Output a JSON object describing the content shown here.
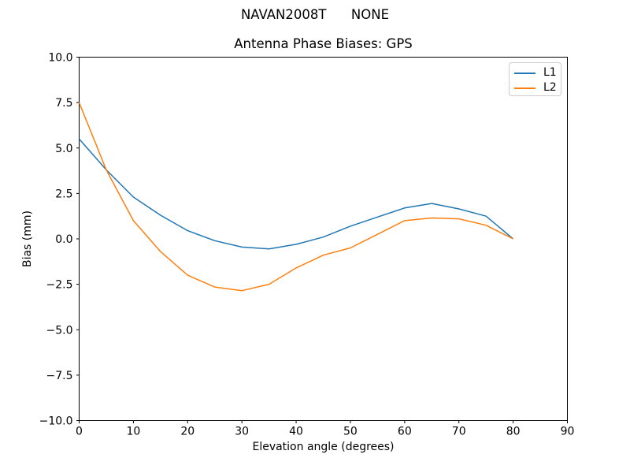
{
  "figure": {
    "suptitle": "NAVAN2008T      NONE",
    "title": "Antenna Phase Biases: GPS"
  },
  "chart_data": {
    "type": "line",
    "suptitle": "NAVAN2008T      NONE",
    "title": "Antenna Phase Biases: GPS",
    "xlabel": "Elevation angle (degrees)",
    "ylabel": "Bias (mm)",
    "xlim": [
      0,
      90
    ],
    "ylim": [
      -10,
      10
    ],
    "grid": false,
    "legend_position": "upper right",
    "x": [
      0,
      5,
      10,
      15,
      20,
      25,
      30,
      35,
      40,
      45,
      50,
      55,
      60,
      65,
      70,
      75,
      80
    ],
    "series": [
      {
        "name": "L1",
        "color": "#1f77b4",
        "values": [
          5.5,
          3.8,
          2.3,
          1.3,
          0.45,
          -0.1,
          -0.45,
          -0.55,
          -0.3,
          0.1,
          0.7,
          1.2,
          1.7,
          1.95,
          1.65,
          1.25,
          0.0
        ]
      },
      {
        "name": "L2",
        "color": "#ff7f0e",
        "values": [
          7.5,
          3.8,
          1.0,
          -0.7,
          -2.0,
          -2.65,
          -2.85,
          -2.5,
          -1.6,
          -0.9,
          -0.5,
          0.25,
          1.0,
          1.15,
          1.1,
          0.75,
          0.0
        ]
      }
    ],
    "xticks": {
      "values": [
        0,
        10,
        20,
        30,
        40,
        50,
        60,
        70,
        80,
        90
      ],
      "labels": [
        "0",
        "10",
        "20",
        "30",
        "40",
        "50",
        "60",
        "70",
        "80",
        "90"
      ]
    },
    "yticks": {
      "values": [
        10,
        7.5,
        5,
        2.5,
        0,
        -2.5,
        -5,
        -7.5,
        -10
      ],
      "labels": [
        "10.0",
        "7.5",
        "5.0",
        "2.5",
        "0.0",
        "−2.5",
        "−5.0",
        "−7.5",
        "−10.0"
      ]
    }
  },
  "legend": {
    "items": [
      {
        "label": "L1",
        "color": "#1f77b4"
      },
      {
        "label": "L2",
        "color": "#ff7f0e"
      }
    ]
  },
  "colors": {
    "axes": "#000000",
    "legend_border": "#cccccc",
    "background": "#ffffff"
  }
}
